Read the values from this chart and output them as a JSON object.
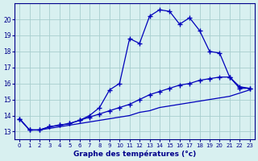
{
  "title": "",
  "xlabel": "Graphe des températures (°c)",
  "background_color": "#d8f0f0",
  "grid_color": "#a8cece",
  "line_color": "#0000bb",
  "x": [
    0,
    1,
    2,
    3,
    4,
    5,
    6,
    7,
    8,
    9,
    10,
    11,
    12,
    13,
    14,
    15,
    16,
    17,
    18,
    19,
    20,
    21,
    22,
    23
  ],
  "line_main": [
    13.8,
    13.1,
    13.1,
    13.3,
    13.4,
    13.5,
    13.7,
    14.0,
    14.5,
    15.6,
    16.0,
    18.8,
    18.5,
    20.2,
    20.6,
    20.5,
    19.7,
    20.1,
    19.3,
    18.0,
    17.9,
    16.4,
    15.7,
    15.7
  ],
  "line_upper": [
    13.8,
    13.1,
    13.1,
    13.3,
    13.4,
    13.5,
    13.7,
    13.9,
    14.1,
    14.3,
    14.5,
    14.7,
    15.0,
    15.3,
    15.5,
    15.7,
    15.9,
    16.0,
    16.2,
    16.3,
    16.4,
    16.4,
    15.8,
    15.7
  ],
  "line_lower": [
    13.8,
    13.1,
    13.1,
    13.2,
    13.3,
    13.4,
    13.5,
    13.6,
    13.7,
    13.8,
    13.9,
    14.0,
    14.2,
    14.3,
    14.5,
    14.6,
    14.7,
    14.8,
    14.9,
    15.0,
    15.1,
    15.2,
    15.4,
    15.6
  ],
  "ylim": [
    12.5,
    21.0
  ],
  "yticks": [
    13,
    14,
    15,
    16,
    17,
    18,
    19,
    20
  ],
  "xlim": [
    -0.5,
    23.5
  ],
  "xticks": [
    0,
    1,
    2,
    3,
    4,
    5,
    6,
    7,
    8,
    9,
    10,
    11,
    12,
    13,
    14,
    15,
    16,
    17,
    18,
    19,
    20,
    21,
    22,
    23
  ]
}
